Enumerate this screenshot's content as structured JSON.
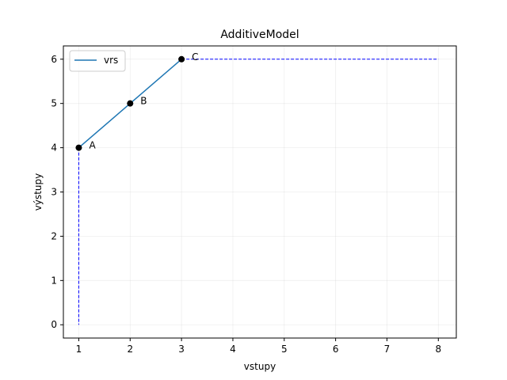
{
  "chart_data": {
    "type": "line",
    "title": "AdditiveModel",
    "xlabel": "vstupy",
    "ylabel": "výstupy",
    "xlim": [
      0.7,
      8.35
    ],
    "ylim": [
      -0.3,
      6.3
    ],
    "xticks": [
      1,
      2,
      3,
      4,
      5,
      6,
      7,
      8
    ],
    "yticks": [
      0,
      1,
      2,
      3,
      4,
      5,
      6
    ],
    "grid": true,
    "legend": {
      "placement": "top-left",
      "entries": [
        "vrs"
      ]
    },
    "series": [
      {
        "name": "vrs",
        "x": [
          1,
          2,
          3
        ],
        "y": [
          4,
          5,
          6
        ],
        "color": "#1f77b4"
      }
    ],
    "points": [
      {
        "label": "A",
        "x": 1,
        "y": 4
      },
      {
        "label": "B",
        "x": 2,
        "y": 5
      },
      {
        "label": "C",
        "x": 3,
        "y": 6
      }
    ],
    "extensions": [
      {
        "from": [
          1,
          4
        ],
        "to": [
          1,
          0
        ],
        "style": "dashed",
        "color": "#0000ff"
      },
      {
        "from": [
          3,
          6
        ],
        "to": [
          8,
          6
        ],
        "style": "dashed",
        "color": "#0000ff"
      }
    ]
  }
}
